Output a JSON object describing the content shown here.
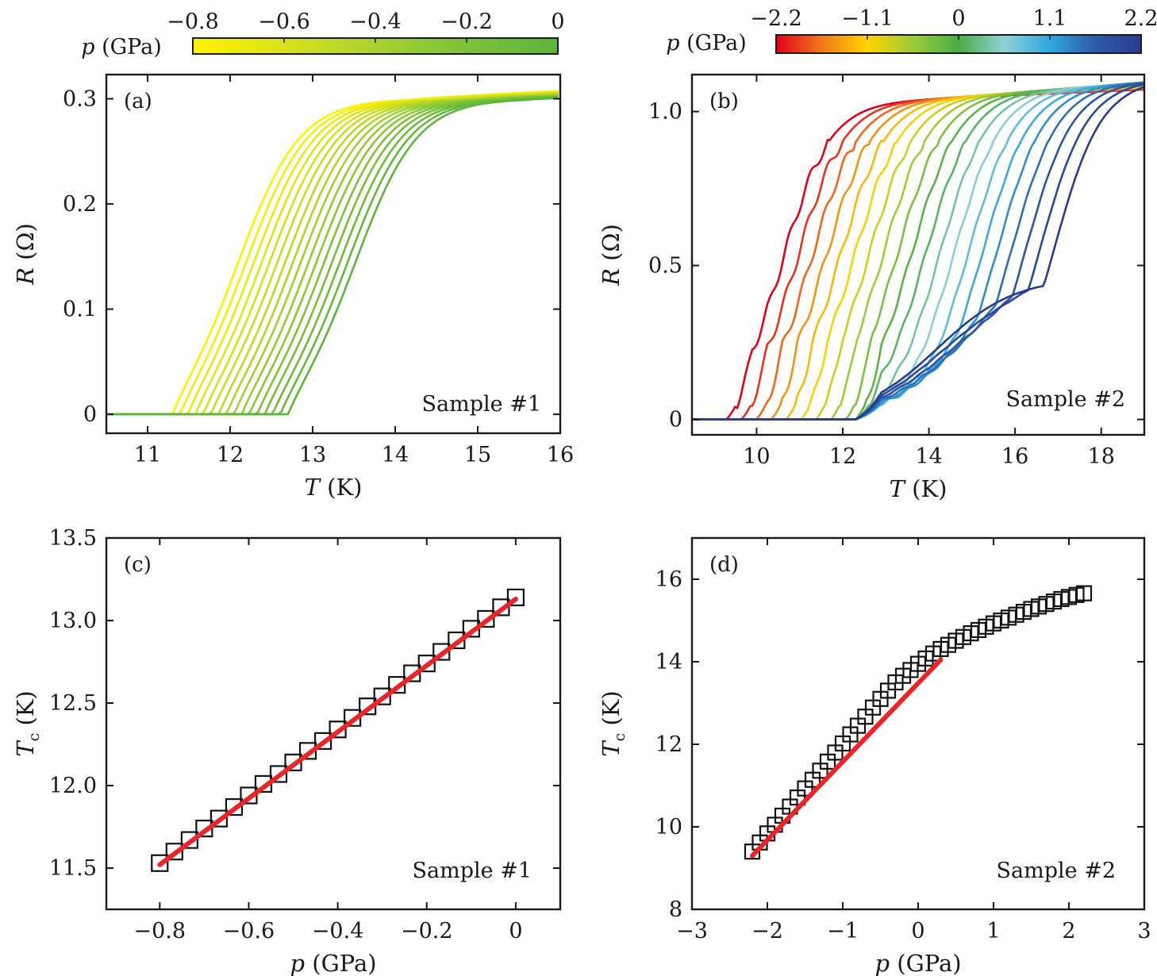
{
  "figure": {
    "colors": {
      "axis": "#1a1a1a",
      "fit_line": "#e8262a",
      "marker_edge": "#111111",
      "background": "#ffffff"
    }
  },
  "colorbars": [
    {
      "id": "cb-a",
      "label": "p (GPa)",
      "range": [
        -0.8,
        0
      ],
      "ticks": [
        -0.8,
        -0.6,
        -0.4,
        -0.2,
        0
      ],
      "tick_labels": [
        "−0.8",
        "−0.6",
        "−0.4",
        "−0.2",
        "0"
      ],
      "colors": [
        "#fff200",
        "#d8e21a",
        "#a9d22e",
        "#7cc13a",
        "#5db53b"
      ]
    },
    {
      "id": "cb-b",
      "label": "p (GPa)",
      "range": [
        -2.2,
        2.2
      ],
      "ticks": [
        -2.2,
        -1.1,
        0,
        1.1,
        2.2
      ],
      "tick_labels": [
        "−2.2",
        "−1.1",
        "0",
        "1.1",
        "2.2"
      ],
      "colors": [
        "#e3001b",
        "#f07a1a",
        "#ffd400",
        "#9ccb3b",
        "#48ae46",
        "#8fd1d5",
        "#2ea7e0",
        "#2e5aa8",
        "#283c8f"
      ]
    }
  ],
  "chart_data": [
    {
      "id": "a",
      "type": "line",
      "panel_label": "(a)",
      "annotation": "Sample #1",
      "xlabel": "T (K)",
      "ylabel": "R (Ω)",
      "xlim": [
        10.5,
        16
      ],
      "ylim": [
        -0.018,
        0.323
      ],
      "xticks": [
        11,
        12,
        13,
        14,
        15,
        16
      ],
      "xtick_labels": [
        "11",
        "12",
        "13",
        "14",
        "15",
        "16"
      ],
      "yticks": [
        0,
        0.1,
        0.2,
        0.3
      ],
      "ytick_labels": [
        "0",
        "0.1",
        "0.2",
        "0.3"
      ],
      "series_model": {
        "count": 16,
        "pressure_range_gpa": [
          -0.8,
          0
        ],
        "midpoint_T_K": [
          12.12,
          13.54
        ],
        "R_normal_ohm": 0.3,
        "width_K": 0.37,
        "onset_T_K": [
          11.3,
          12.7
        ]
      }
    },
    {
      "id": "b",
      "type": "line",
      "panel_label": "(b)",
      "annotation": "Sample #2",
      "xlabel": "T (K)",
      "ylabel": "R (Ω)",
      "xlim": [
        8.5,
        19
      ],
      "ylim": [
        -0.05,
        1.12
      ],
      "xticks": [
        10,
        12,
        14,
        16,
        18
      ],
      "xtick_labels": [
        "10",
        "12",
        "14",
        "16",
        "18"
      ],
      "yticks": [
        0,
        0.5,
        1.0
      ],
      "ytick_labels": [
        "0",
        "0.5",
        "1.0"
      ],
      "series_model": {
        "count": 20,
        "pressure_range_gpa": [
          -2.2,
          2.2
        ],
        "midpoint_T_K": [
          10.6,
          16.9
        ],
        "R_normal_ohm": [
          1.03,
          1.1
        ],
        "width_K": 0.55,
        "onset_T_K": [
          9.3,
          12.3
        ]
      }
    },
    {
      "id": "c",
      "type": "scatter",
      "panel_label": "(c)",
      "annotation": "Sample #1",
      "xlabel": "p (GPa)",
      "ylabel": "Tc (K)",
      "xlim": [
        -0.92,
        0.1
      ],
      "ylim": [
        11.25,
        13.5
      ],
      "xticks": [
        -0.8,
        -0.6,
        -0.4,
        -0.2,
        0
      ],
      "xtick_labels": [
        "−0.8",
        "−0.6",
        "−0.4",
        "−0.2",
        "0"
      ],
      "yticks": [
        11.5,
        12.0,
        12.5,
        13.0,
        13.5
      ],
      "ytick_labels": [
        "11.5",
        "12.0",
        "12.5",
        "13.0",
        "13.5"
      ],
      "points": {
        "x": [
          -0.8,
          -0.767,
          -0.733,
          -0.7,
          -0.667,
          -0.633,
          -0.6,
          -0.567,
          -0.533,
          -0.5,
          -0.467,
          -0.433,
          -0.4,
          -0.367,
          -0.333,
          -0.3,
          -0.267,
          -0.233,
          -0.2,
          -0.167,
          -0.133,
          -0.1,
          -0.067,
          -0.033,
          0
        ],
        "y": [
          11.53,
          11.6,
          11.67,
          11.74,
          11.8,
          11.87,
          11.94,
          12.01,
          12.07,
          12.14,
          12.21,
          12.27,
          12.34,
          12.41,
          12.48,
          12.54,
          12.61,
          12.68,
          12.74,
          12.81,
          12.88,
          12.95,
          13.01,
          13.08,
          13.14
        ]
      },
      "fit": {
        "x": [
          -0.8,
          0
        ],
        "y": [
          11.52,
          13.13
        ]
      }
    },
    {
      "id": "d",
      "type": "scatter",
      "panel_label": "(d)",
      "annotation": "Sample #2",
      "xlabel": "p (GPa)",
      "ylabel": "Tc (K)",
      "xlim": [
        -3,
        3
      ],
      "ylim": [
        8,
        17
      ],
      "xticks": [
        -3,
        -2,
        -1,
        0,
        1,
        2,
        3
      ],
      "xtick_labels": [
        "−3",
        "−2",
        "−1",
        "0",
        "1",
        "2",
        "3"
      ],
      "yticks": [
        8,
        10,
        12,
        14,
        16
      ],
      "ytick_labels": [
        "8",
        "10",
        "12",
        "14",
        "16"
      ],
      "points": {
        "x": [
          -2.2,
          -2.1,
          -2.0,
          -1.9,
          -1.8,
          -1.7,
          -1.6,
          -1.5,
          -1.4,
          -1.3,
          -1.2,
          -1.1,
          -1.0,
          -0.9,
          -0.8,
          -0.7,
          -0.6,
          -0.5,
          -0.4,
          -0.3,
          -0.2,
          -0.1,
          0.0,
          0.1,
          0.2,
          0.3,
          0.4,
          0.5,
          0.6,
          0.7,
          0.8,
          0.9,
          1.0,
          1.1,
          1.2,
          1.3,
          1.4,
          1.5,
          1.6,
          1.7,
          1.8,
          1.9,
          2.0,
          2.1,
          2.2
        ],
        "y": [
          9.4,
          9.62,
          9.84,
          10.05,
          10.27,
          10.49,
          10.71,
          10.93,
          11.14,
          11.36,
          11.58,
          11.8,
          12.02,
          12.24,
          12.45,
          12.67,
          12.89,
          13.1,
          13.3,
          13.5,
          13.66,
          13.8,
          13.95,
          14.08,
          14.2,
          14.31,
          14.41,
          14.51,
          14.6,
          14.69,
          14.77,
          14.85,
          14.93,
          15.0,
          15.07,
          15.14,
          15.21,
          15.28,
          15.34,
          15.4,
          15.46,
          15.52,
          15.57,
          15.62,
          15.66
        ]
      },
      "fit": {
        "x": [
          -2.2,
          0.3
        ],
        "y": [
          9.3,
          14.05
        ]
      }
    }
  ]
}
